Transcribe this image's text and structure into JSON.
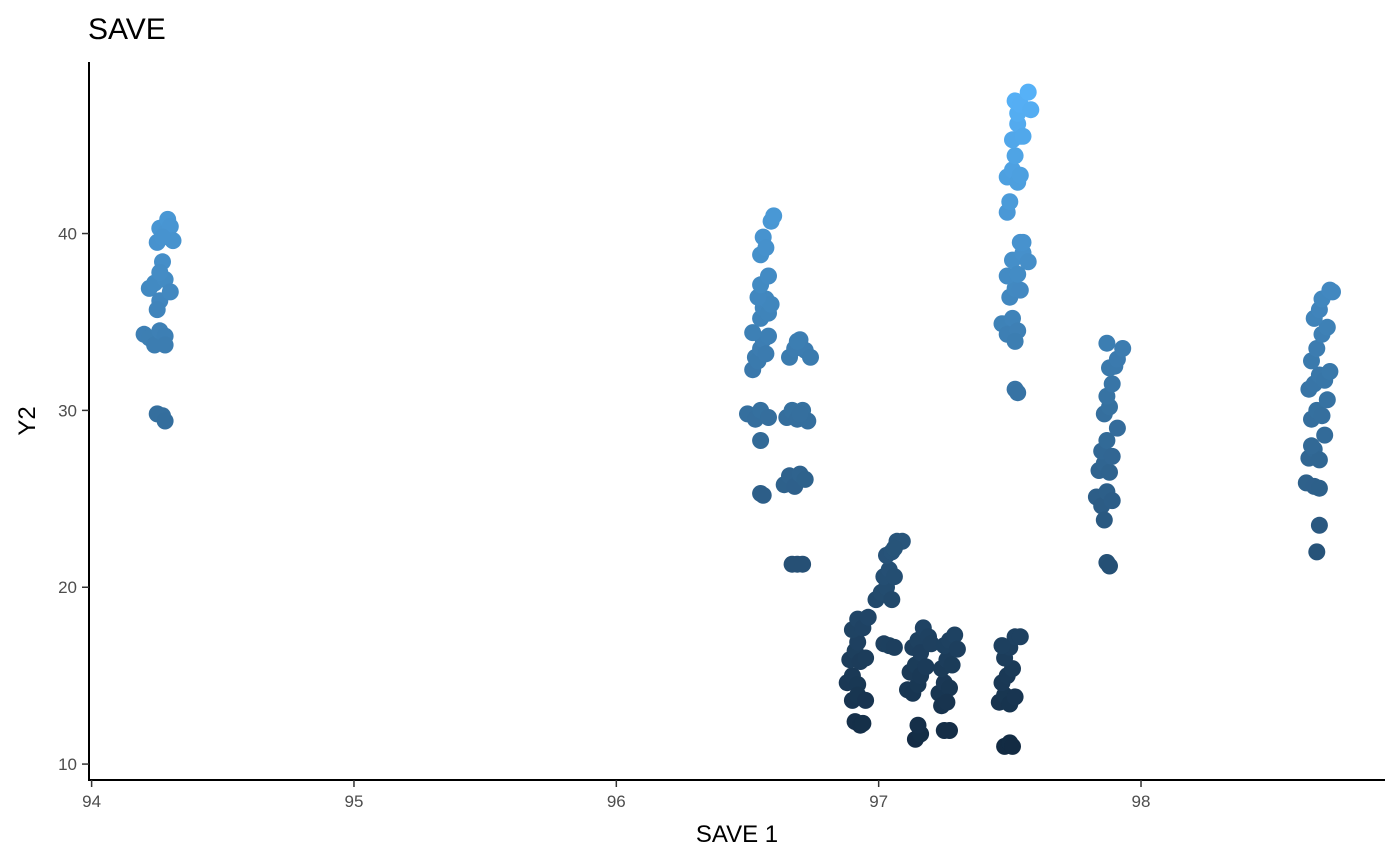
{
  "chart_data": {
    "type": "scatter",
    "title": "SAVE",
    "xlabel": "SAVE 1",
    "ylabel": "Y2",
    "xlim": [
      93.99,
      98.93
    ],
    "ylim": [
      9.1,
      49.7
    ],
    "xticks": [
      "94",
      "95",
      "96",
      "97",
      "98"
    ],
    "yticks": [
      "10",
      "20",
      "30",
      "40"
    ],
    "grid": false,
    "legend": "none",
    "color_scale": {
      "low": "#132B43",
      "high": "#56B1F7",
      "min": 11,
      "max": 48
    },
    "points": [
      [
        94.2,
        34.3
      ],
      [
        94.22,
        34.1
      ],
      [
        94.24,
        33.7
      ],
      [
        94.26,
        34.5
      ],
      [
        94.28,
        34.2
      ],
      [
        94.28,
        33.7
      ],
      [
        94.22,
        36.9
      ],
      [
        94.24,
        37.2
      ],
      [
        94.26,
        36.2
      ],
      [
        94.25,
        35.7
      ],
      [
        94.28,
        37.4
      ],
      [
        94.3,
        36.7
      ],
      [
        94.27,
        38.4
      ],
      [
        94.26,
        37.8
      ],
      [
        94.25,
        39.5
      ],
      [
        94.26,
        40.3
      ],
      [
        94.28,
        40.0
      ],
      [
        94.29,
        40.8
      ],
      [
        94.3,
        40.4
      ],
      [
        94.31,
        39.6
      ],
      [
        94.27,
        39.8
      ],
      [
        94.25,
        29.8
      ],
      [
        94.27,
        29.7
      ],
      [
        94.28,
        29.4
      ],
      [
        96.5,
        29.8
      ],
      [
        96.53,
        29.5
      ],
      [
        96.55,
        30.0
      ],
      [
        96.58,
        29.6
      ],
      [
        96.55,
        28.3
      ],
      [
        96.55,
        25.3
      ],
      [
        96.56,
        25.2
      ],
      [
        96.52,
        32.3
      ],
      [
        96.53,
        33.0
      ],
      [
        96.54,
        32.8
      ],
      [
        96.55,
        33.5
      ],
      [
        96.56,
        34.0
      ],
      [
        96.57,
        33.2
      ],
      [
        96.58,
        34.2
      ],
      [
        96.52,
        34.4
      ],
      [
        96.55,
        35.2
      ],
      [
        96.56,
        35.8
      ],
      [
        96.57,
        36.3
      ],
      [
        96.58,
        35.5
      ],
      [
        96.59,
        36.0
      ],
      [
        96.54,
        36.4
      ],
      [
        96.55,
        37.1
      ],
      [
        96.58,
        37.6
      ],
      [
        96.55,
        38.8
      ],
      [
        96.56,
        39.8
      ],
      [
        96.57,
        39.2
      ],
      [
        96.59,
        40.7
      ],
      [
        96.6,
        41.0
      ],
      [
        96.66,
        33.0
      ],
      [
        96.68,
        33.5
      ],
      [
        96.7,
        34.0
      ],
      [
        96.72,
        33.4
      ],
      [
        96.74,
        33.0
      ],
      [
        96.69,
        33.9
      ],
      [
        96.65,
        29.6
      ],
      [
        96.67,
        30.0
      ],
      [
        96.69,
        29.5
      ],
      [
        96.71,
        30.0
      ],
      [
        96.73,
        29.4
      ],
      [
        96.7,
        29.8
      ],
      [
        96.64,
        25.8
      ],
      [
        96.66,
        26.3
      ],
      [
        96.68,
        25.7
      ],
      [
        96.7,
        26.4
      ],
      [
        96.72,
        26.1
      ],
      [
        96.67,
        21.3
      ],
      [
        96.69,
        21.3
      ],
      [
        96.71,
        21.3
      ],
      [
        96.88,
        14.6
      ],
      [
        96.9,
        15.0
      ],
      [
        96.92,
        14.5
      ],
      [
        96.89,
        15.9
      ],
      [
        96.91,
        16.4
      ],
      [
        96.93,
        15.8
      ],
      [
        96.95,
        16.0
      ],
      [
        96.92,
        16.9
      ],
      [
        96.9,
        17.6
      ],
      [
        96.92,
        18.2
      ],
      [
        96.94,
        17.7
      ],
      [
        96.96,
        18.3
      ],
      [
        96.9,
        13.6
      ],
      [
        96.92,
        13.9
      ],
      [
        96.95,
        13.6
      ],
      [
        96.91,
        12.4
      ],
      [
        96.93,
        12.2
      ],
      [
        96.94,
        12.3
      ],
      [
        96.99,
        19.3
      ],
      [
        97.01,
        19.7
      ],
      [
        97.03,
        20.0
      ],
      [
        97.05,
        19.3
      ],
      [
        97.02,
        20.6
      ],
      [
        97.04,
        21.0
      ],
      [
        97.06,
        20.6
      ],
      [
        97.03,
        21.8
      ],
      [
        97.05,
        22.0
      ],
      [
        97.07,
        22.6
      ],
      [
        97.09,
        22.6
      ],
      [
        97.06,
        22.2
      ],
      [
        97.02,
        16.8
      ],
      [
        97.04,
        16.7
      ],
      [
        97.06,
        16.6
      ],
      [
        97.11,
        14.2
      ],
      [
        97.13,
        14.0
      ],
      [
        97.15,
        14.5
      ],
      [
        97.12,
        15.2
      ],
      [
        97.14,
        15.6
      ],
      [
        97.16,
        15.0
      ],
      [
        97.13,
        16.6
      ],
      [
        97.15,
        17.0
      ],
      [
        97.17,
        17.7
      ],
      [
        97.19,
        17.2
      ],
      [
        97.16,
        16.3
      ],
      [
        97.18,
        15.5
      ],
      [
        97.2,
        16.8
      ],
      [
        97.14,
        11.4
      ],
      [
        97.16,
        11.7
      ],
      [
        97.15,
        12.2
      ],
      [
        97.23,
        14.0
      ],
      [
        97.25,
        14.6
      ],
      [
        97.27,
        14.3
      ],
      [
        97.24,
        15.4
      ],
      [
        97.26,
        15.9
      ],
      [
        97.28,
        15.6
      ],
      [
        97.25,
        16.7
      ],
      [
        97.27,
        17.0
      ],
      [
        97.29,
        17.3
      ],
      [
        97.3,
        16.5
      ],
      [
        97.24,
        13.3
      ],
      [
        97.26,
        13.5
      ],
      [
        97.25,
        11.9
      ],
      [
        97.27,
        11.9
      ],
      [
        97.46,
        13.5
      ],
      [
        97.48,
        13.9
      ],
      [
        97.5,
        13.4
      ],
      [
        97.52,
        13.8
      ],
      [
        97.47,
        14.6
      ],
      [
        97.49,
        15.0
      ],
      [
        97.51,
        15.4
      ],
      [
        97.48,
        16.0
      ],
      [
        97.5,
        16.6
      ],
      [
        97.52,
        17.2
      ],
      [
        97.54,
        17.2
      ],
      [
        97.47,
        16.7
      ],
      [
        97.48,
        11.0
      ],
      [
        97.5,
        11.2
      ],
      [
        97.51,
        11.0
      ],
      [
        97.47,
        34.9
      ],
      [
        97.49,
        34.3
      ],
      [
        97.51,
        35.2
      ],
      [
        97.53,
        34.5
      ],
      [
        97.52,
        33.9
      ],
      [
        97.5,
        36.4
      ],
      [
        97.52,
        36.9
      ],
      [
        97.54,
        36.8
      ],
      [
        97.49,
        37.6
      ],
      [
        97.51,
        38.5
      ],
      [
        97.53,
        37.7
      ],
      [
        97.55,
        38.9
      ],
      [
        97.57,
        38.4
      ],
      [
        97.54,
        39.5
      ],
      [
        97.55,
        39.5
      ],
      [
        97.52,
        31.2
      ],
      [
        97.53,
        31.0
      ],
      [
        97.49,
        41.2
      ],
      [
        97.5,
        41.8
      ],
      [
        97.49,
        43.2
      ],
      [
        97.51,
        43.6
      ],
      [
        97.53,
        42.9
      ],
      [
        97.54,
        43.3
      ],
      [
        97.52,
        44.4
      ],
      [
        97.54,
        45.5
      ],
      [
        97.51,
        45.3
      ],
      [
        97.53,
        46.2
      ],
      [
        97.55,
        45.5
      ],
      [
        97.53,
        46.8
      ],
      [
        97.52,
        47.5
      ],
      [
        97.54,
        47.3
      ],
      [
        97.57,
        48.0
      ],
      [
        97.58,
        47.0
      ],
      [
        97.83,
        25.1
      ],
      [
        97.85,
        24.6
      ],
      [
        97.87,
        25.4
      ],
      [
        97.89,
        24.9
      ],
      [
        97.86,
        23.8
      ],
      [
        97.84,
        26.6
      ],
      [
        97.86,
        27.0
      ],
      [
        97.88,
        26.5
      ],
      [
        97.85,
        27.7
      ],
      [
        97.87,
        28.3
      ],
      [
        97.89,
        27.4
      ],
      [
        97.91,
        29.0
      ],
      [
        97.86,
        29.8
      ],
      [
        97.88,
        30.2
      ],
      [
        97.87,
        30.8
      ],
      [
        97.89,
        31.5
      ],
      [
        97.88,
        32.4
      ],
      [
        97.9,
        32.5
      ],
      [
        97.91,
        32.9
      ],
      [
        97.87,
        33.8
      ],
      [
        97.93,
        33.5
      ],
      [
        97.87,
        21.4
      ],
      [
        97.88,
        21.2
      ],
      [
        98.63,
        25.9
      ],
      [
        98.66,
        25.7
      ],
      [
        98.68,
        25.6
      ],
      [
        98.64,
        27.3
      ],
      [
        98.66,
        27.8
      ],
      [
        98.68,
        27.2
      ],
      [
        98.7,
        28.6
      ],
      [
        98.65,
        28.0
      ],
      [
        98.65,
        29.5
      ],
      [
        98.67,
        30.0
      ],
      [
        98.69,
        29.7
      ],
      [
        98.71,
        30.6
      ],
      [
        98.64,
        31.2
      ],
      [
        98.66,
        31.5
      ],
      [
        98.68,
        32.0
      ],
      [
        98.7,
        31.7
      ],
      [
        98.72,
        32.2
      ],
      [
        98.65,
        32.8
      ],
      [
        98.67,
        33.5
      ],
      [
        98.69,
        34.3
      ],
      [
        98.71,
        34.7
      ],
      [
        98.66,
        35.2
      ],
      [
        98.68,
        35.7
      ],
      [
        98.69,
        36.3
      ],
      [
        98.72,
        36.8
      ],
      [
        98.73,
        36.7
      ],
      [
        98.68,
        23.5
      ],
      [
        98.67,
        22.0
      ]
    ]
  }
}
